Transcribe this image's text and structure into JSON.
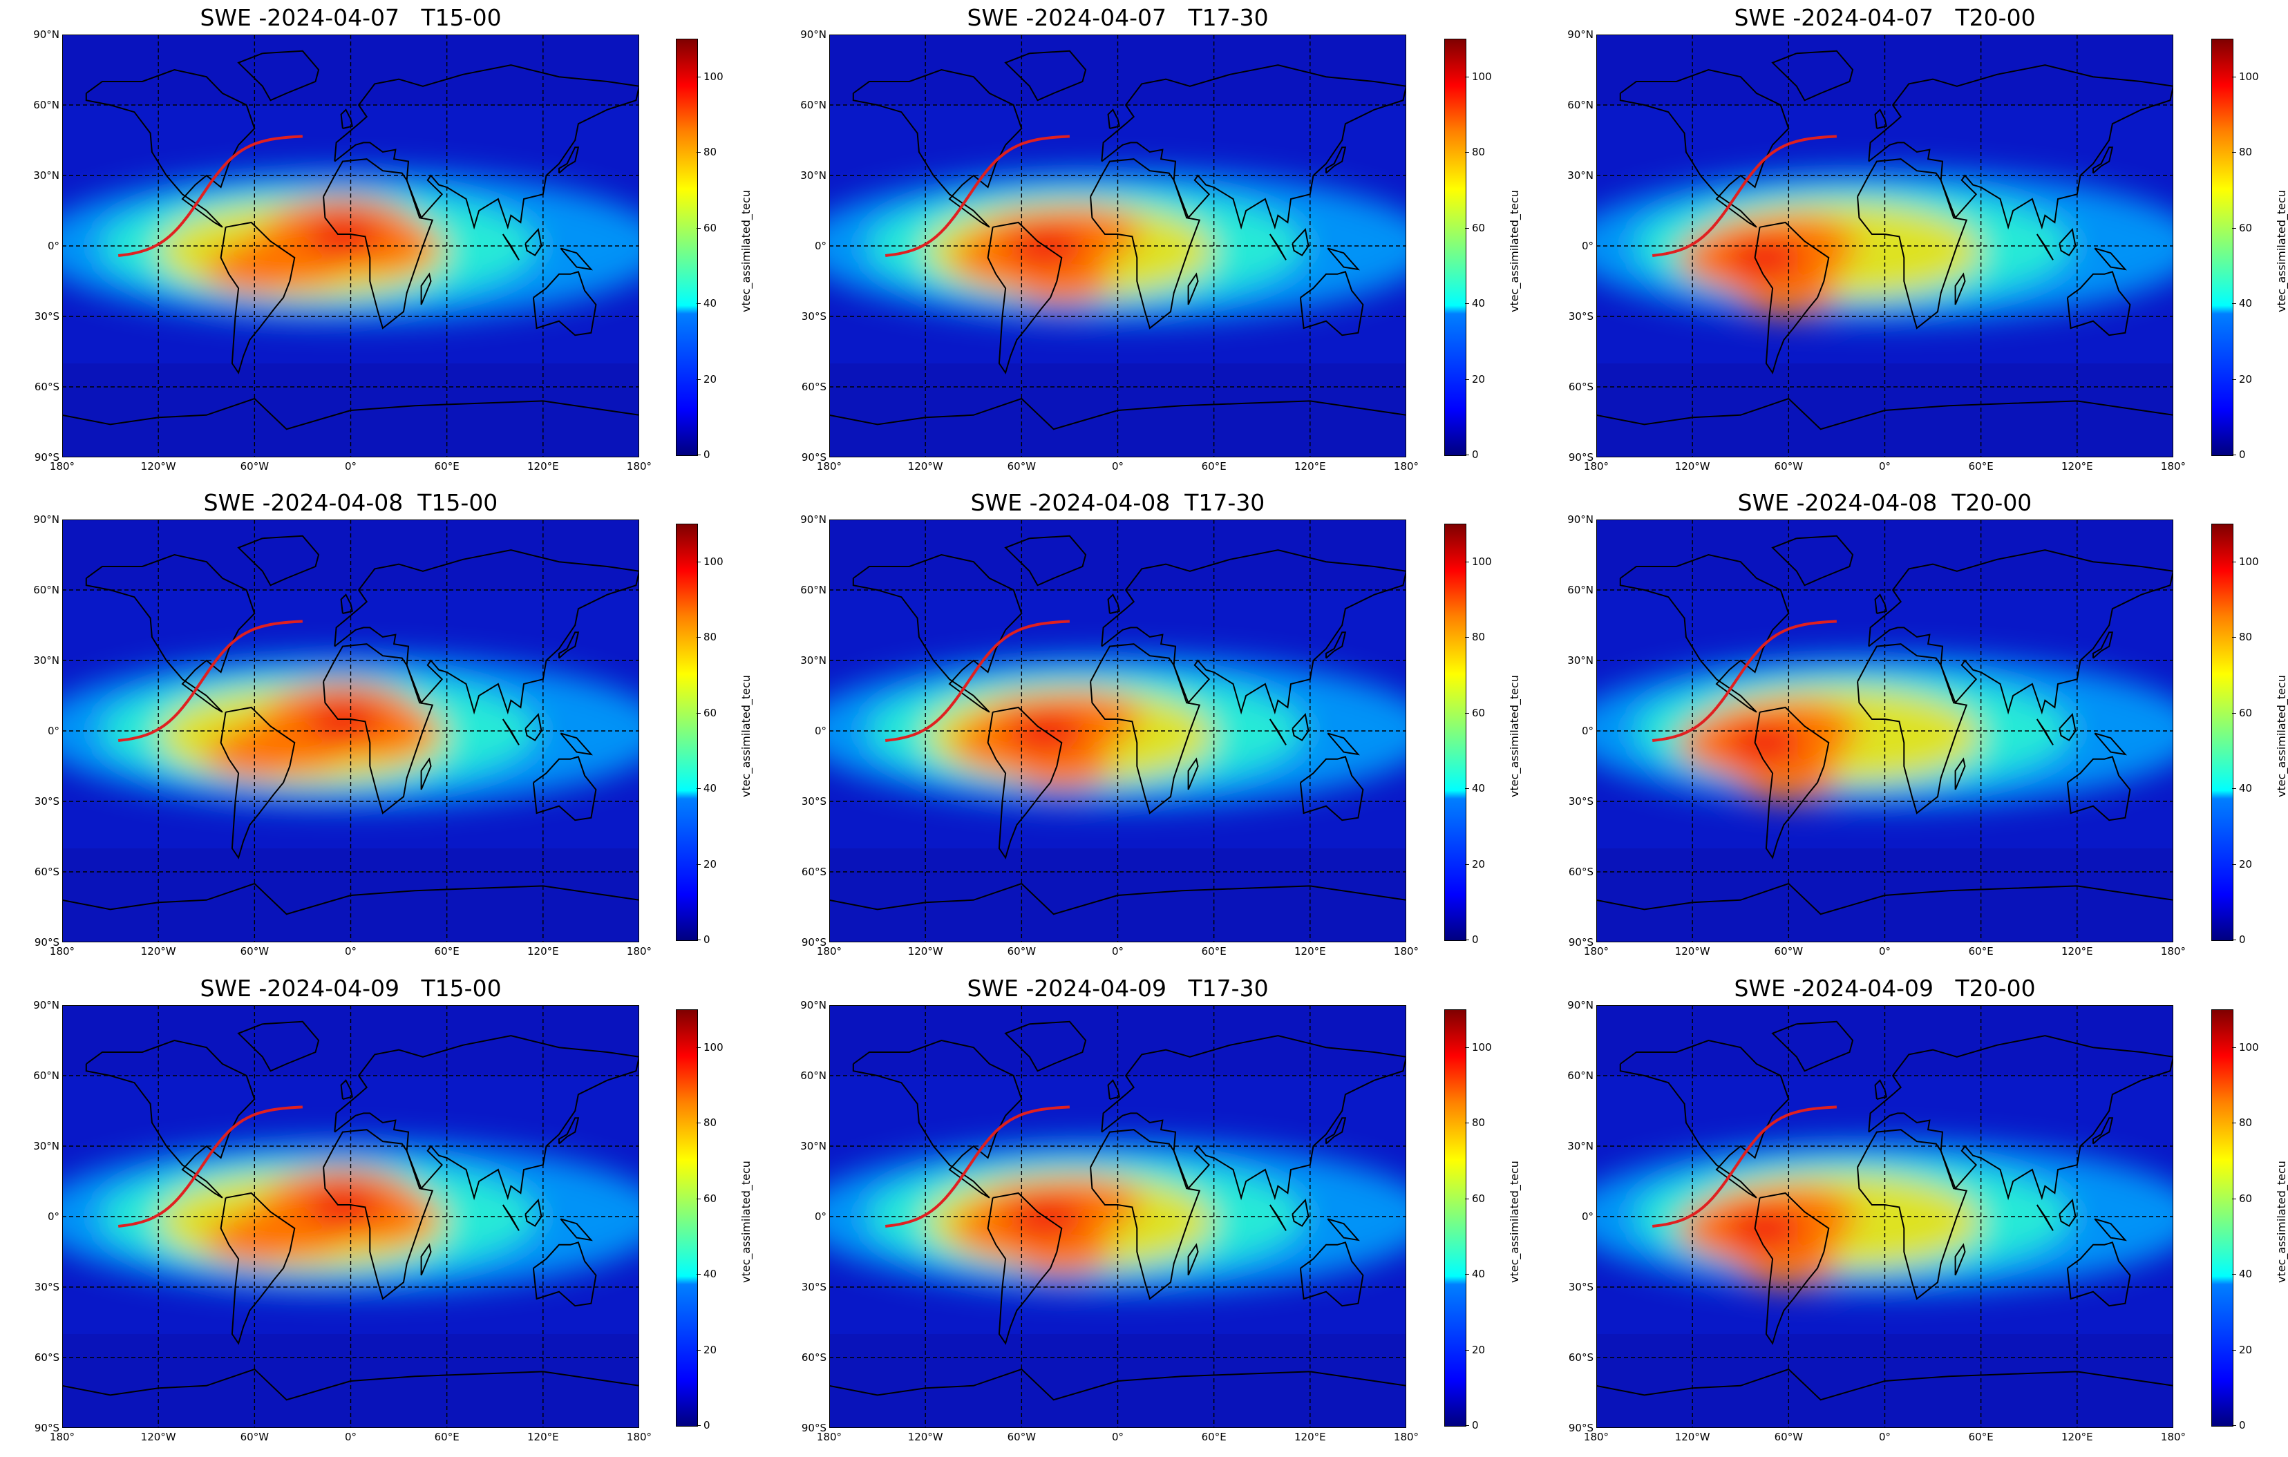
{
  "figure": {
    "panels": [
      {
        "title": "SWE -2024-04-07   T15-00",
        "hot": "africa"
      },
      {
        "title": "SWE -2024-04-07   T17-30",
        "hot": "atlantic"
      },
      {
        "title": "SWE -2024-04-07   T20-00",
        "hot": "samerica"
      },
      {
        "title": "SWE -2024-04-08  T15-00",
        "hot": "africa"
      },
      {
        "title": "SWE -2024-04-08  T17-30",
        "hot": "atlantic"
      },
      {
        "title": "SWE -2024-04-08  T20-00",
        "hot": "samerica"
      },
      {
        "title": "SWE -2024-04-09   T15-00",
        "hot": "africa"
      },
      {
        "title": "SWE -2024-04-09   T17-30",
        "hot": "atlantic"
      },
      {
        "title": "SWE -2024-04-09   T20-00",
        "hot": "samerica"
      }
    ],
    "lat_ticks": [
      "90°N",
      "60°N",
      "30°N",
      "0°",
      "30°S",
      "60°S",
      "90°S"
    ],
    "lon_ticks": [
      "180°",
      "120°W",
      "60°W",
      "0°",
      "60°E",
      "120°E",
      "180°"
    ],
    "colorbar": {
      "label": "vtec_assimilated_tecu",
      "ticks": [
        "0",
        "20",
        "40",
        "60",
        "80",
        "100"
      ],
      "min": 0,
      "max": 110
    }
  },
  "colors": {
    "background": "#0a1ad0",
    "track": "#e02020"
  }
}
